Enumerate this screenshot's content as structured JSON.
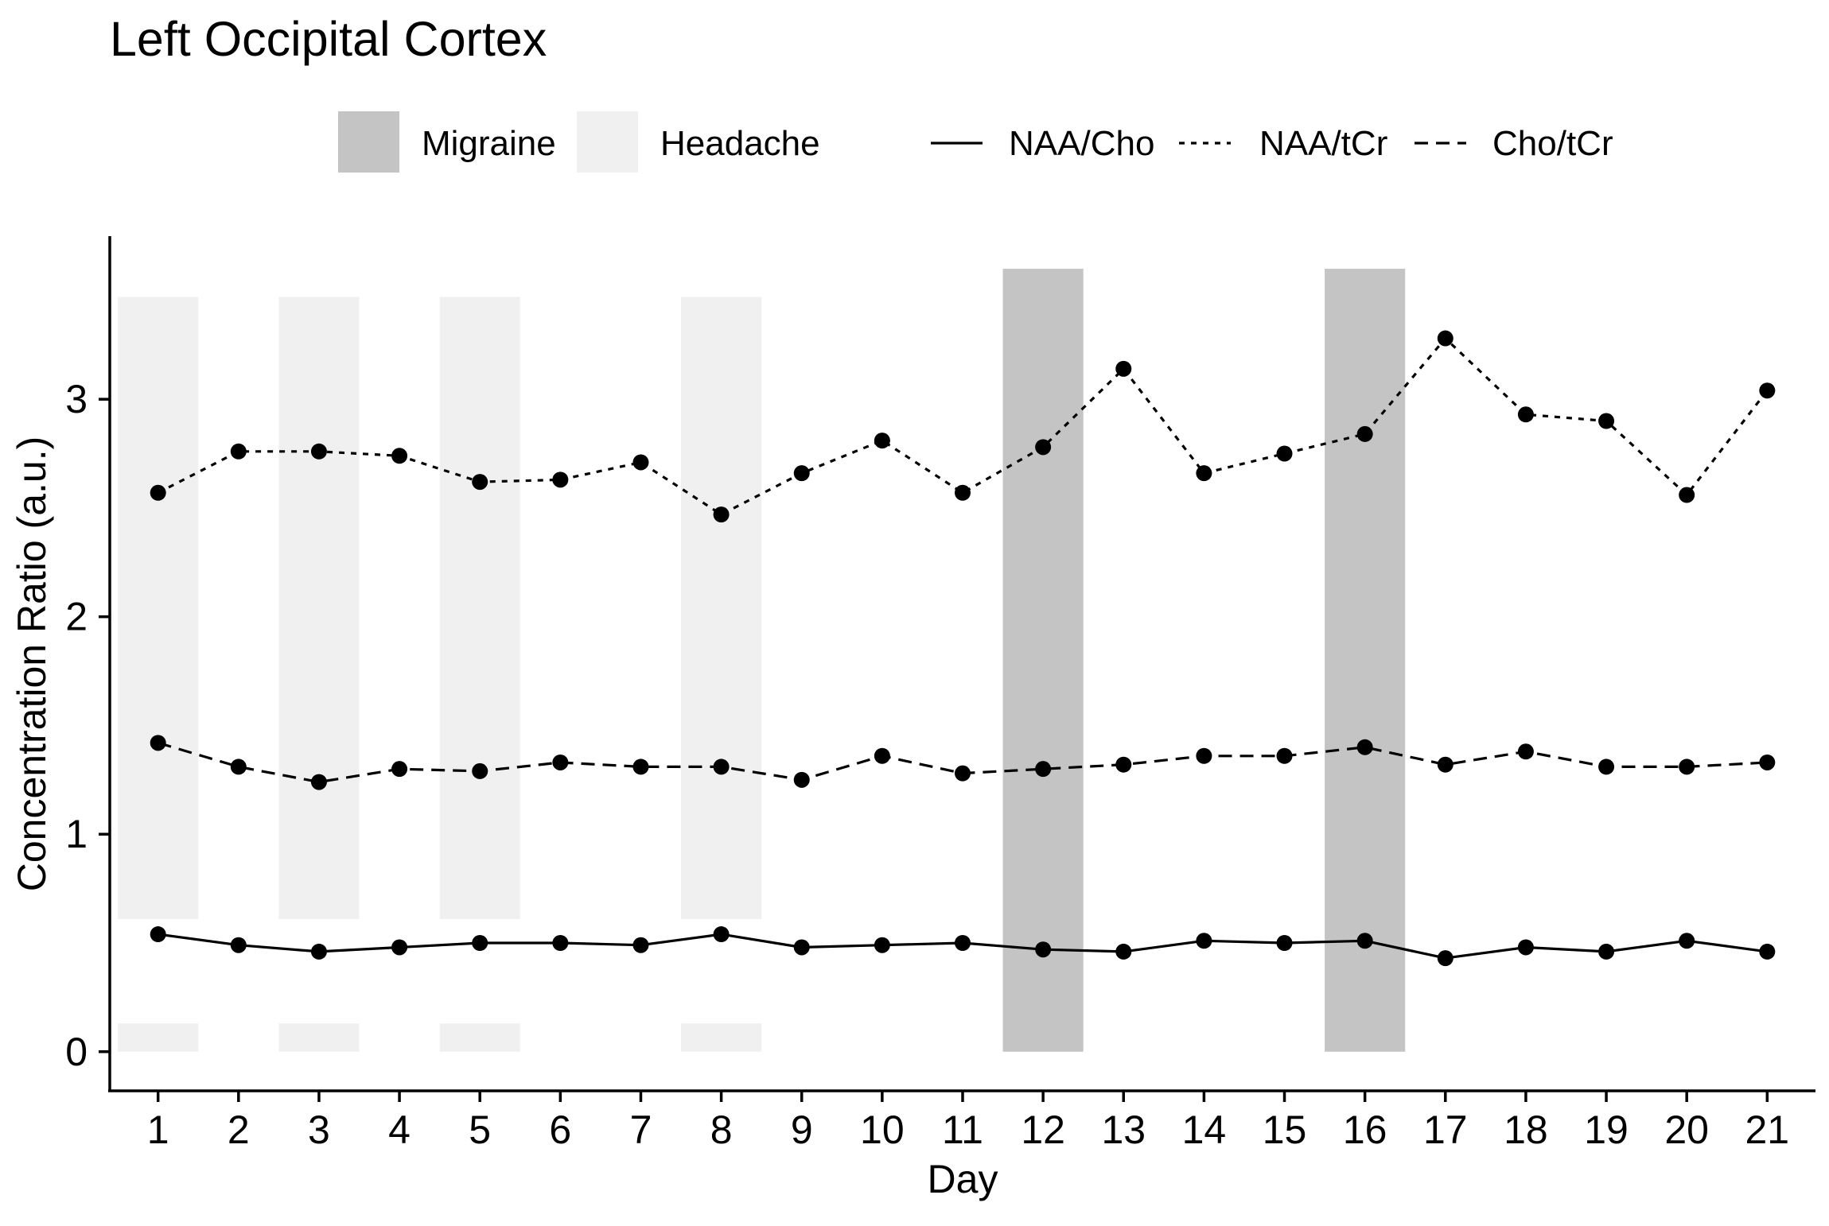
{
  "chart_data": {
    "type": "line",
    "title": "Left Occipital Cortex",
    "xlabel": "Day",
    "ylabel": "Concentration Ratio (a.u.)",
    "x": [
      1,
      2,
      3,
      4,
      5,
      6,
      7,
      8,
      9,
      10,
      11,
      12,
      13,
      14,
      15,
      16,
      17,
      18,
      19,
      20,
      21
    ],
    "x_tick_labels": [
      "1",
      "2",
      "3",
      "4",
      "5",
      "6",
      "7",
      "8",
      "9",
      "10",
      "11",
      "12",
      "13",
      "14",
      "15",
      "16",
      "17",
      "18",
      "19",
      "20",
      "21"
    ],
    "y_ticks": [
      0,
      1,
      2,
      3
    ],
    "y_tick_labels": [
      "0",
      "1",
      "2",
      "3"
    ],
    "xlim": [
      0.4,
      21.6
    ],
    "ylim": [
      -0.18,
      3.75
    ],
    "grid": false,
    "legend_position": "top",
    "series": [
      {
        "name": "NAA/Cho",
        "line_style": "solid",
        "values": [
          0.54,
          0.49,
          0.46,
          0.48,
          0.5,
          0.5,
          0.49,
          0.54,
          0.48,
          0.49,
          0.5,
          0.47,
          0.46,
          0.51,
          0.5,
          0.51,
          0.43,
          0.48,
          0.46,
          0.51,
          0.46
        ]
      },
      {
        "name": "NAA/tCr",
        "line_style": "dotted",
        "values": [
          2.57,
          2.76,
          2.76,
          2.74,
          2.62,
          2.63,
          2.71,
          2.47,
          2.66,
          2.81,
          2.57,
          2.78,
          3.14,
          2.66,
          2.75,
          2.84,
          3.28,
          2.93,
          2.9,
          2.56,
          3.04
        ]
      },
      {
        "name": "Cho/tCr",
        "line_style": "dashed",
        "values": [
          1.42,
          1.31,
          1.24,
          1.3,
          1.29,
          1.33,
          1.31,
          1.31,
          1.25,
          1.36,
          1.28,
          1.3,
          1.32,
          1.36,
          1.36,
          1.4,
          1.32,
          1.38,
          1.31,
          1.31,
          1.33
        ]
      }
    ],
    "shaded_regions": [
      {
        "type": "Headache",
        "day": 1
      },
      {
        "type": "Headache",
        "day": 3
      },
      {
        "type": "Headache",
        "day": 5
      },
      {
        "type": "Headache",
        "day": 8
      },
      {
        "type": "Migraine",
        "day": 12
      },
      {
        "type": "Migraine",
        "day": 16
      }
    ],
    "legend": {
      "fill": [
        {
          "label": "Migraine",
          "color": "#c4c4c4"
        },
        {
          "label": "Headache",
          "color": "#f0f0f0"
        }
      ],
      "lines": [
        {
          "label": "NAA/Cho",
          "line_style": "solid"
        },
        {
          "label": "NAA/tCr",
          "line_style": "dotted"
        },
        {
          "label": "Cho/tCr",
          "line_style": "dashed"
        }
      ]
    },
    "colors": {
      "migraine": "#c4c4c4",
      "headache": "#f0f0f0",
      "line": "#000000",
      "point": "#000000"
    }
  }
}
